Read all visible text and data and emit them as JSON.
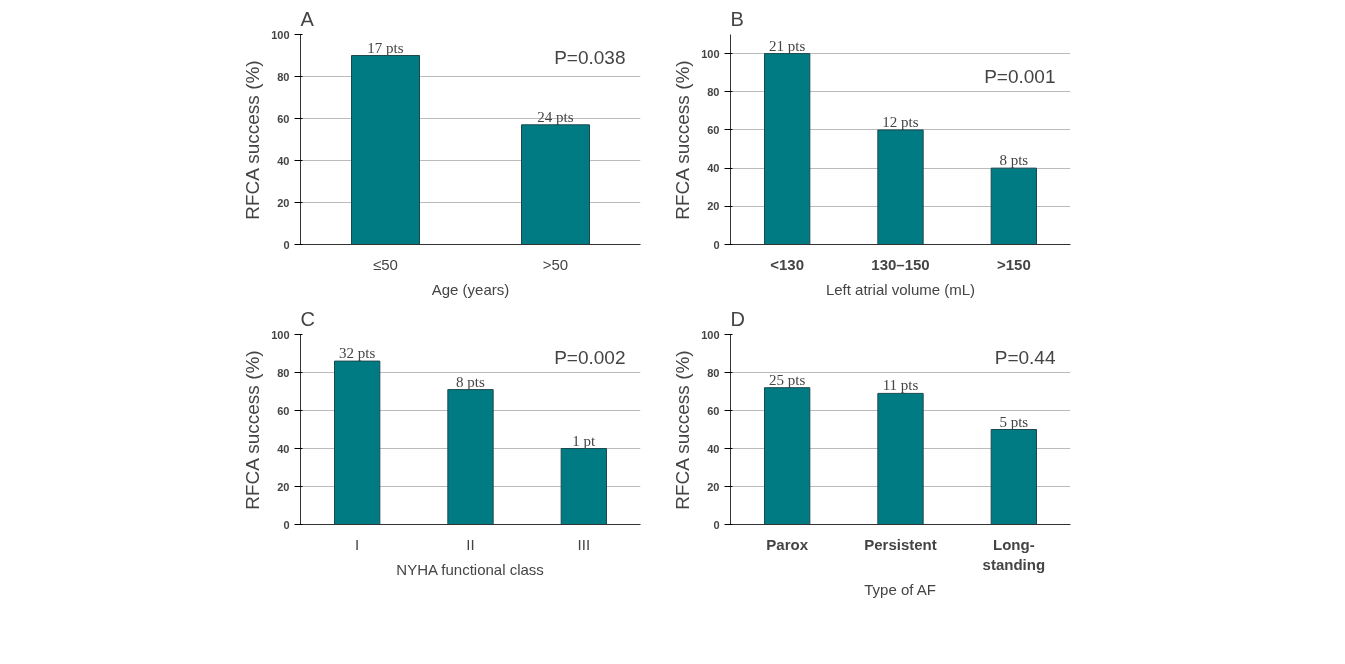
{
  "chart_data": [
    {
      "type": "bar",
      "title": "A",
      "xlabel": "Age (years)",
      "ylabel": "RFCA success (%)",
      "categories": [
        "≤50",
        ">50"
      ],
      "values": [
        90,
        57
      ],
      "color": "#007b83",
      "ylim": [
        0,
        100
      ],
      "yticks": [
        0,
        20,
        40,
        60,
        80,
        100
      ],
      "grid": "y",
      "annotations": [
        "P=0.038",
        {
          "text": "17 pts",
          "x": "≤50",
          "y": 90
        },
        {
          "text": "24 pts",
          "x": ">50",
          "y": 57
        }
      ]
    },
    {
      "type": "bar",
      "title": "B",
      "xlabel": "Left atrial volume (mL)",
      "ylabel": "RFCA success (%)",
      "categories": [
        "<130",
        "130–150",
        ">150"
      ],
      "values": [
        100,
        60,
        40
      ],
      "color": "#007b83",
      "ylim": [
        0,
        110
      ],
      "yticks": [
        0,
        20,
        40,
        60,
        80,
        100
      ],
      "grid": "y",
      "annotations": [
        "P=0.001",
        {
          "text": "21 pts",
          "x": "<130",
          "y": 100
        },
        {
          "text": "12 pts",
          "x": "130–150",
          "y": 60
        },
        {
          "text": "8 pts",
          "x": ">150",
          "y": 40
        }
      ]
    },
    {
      "type": "bar",
      "title": "C",
      "xlabel": "NYHA functional class",
      "ylabel": "RFCA success (%)",
      "categories": [
        "I",
        "II",
        "III"
      ],
      "values": [
        86,
        71,
        40
      ],
      "color": "#007b83",
      "ylim": [
        0,
        100
      ],
      "yticks": [
        0,
        20,
        40,
        60,
        80,
        100
      ],
      "grid": "y",
      "annotations": [
        "P=0.002",
        {
          "text": "32 pts",
          "x": "I",
          "y": 86
        },
        {
          "text": "8 pts",
          "x": "II",
          "y": 71
        },
        {
          "text": "1 pt",
          "x": "III",
          "y": 40
        }
      ]
    },
    {
      "type": "bar",
      "title": "D",
      "xlabel": "Type of AF",
      "ylabel": "RFCA success (%)",
      "categories": [
        "Parox",
        "Persistent",
        "Long-\nstanding"
      ],
      "values": [
        72,
        69,
        50
      ],
      "color": "#007b83",
      "ylim": [
        0,
        100
      ],
      "yticks": [
        0,
        20,
        40,
        60,
        80,
        100
      ],
      "grid": "y",
      "annotations": [
        "P=0.44",
        {
          "text": "25 pts",
          "x": "Parox",
          "y": 72
        },
        {
          "text": "11 pts",
          "x": "Persistent",
          "y": 69
        },
        {
          "text": "5 pts",
          "x": "Long-\nstanding",
          "y": 50
        }
      ]
    }
  ]
}
